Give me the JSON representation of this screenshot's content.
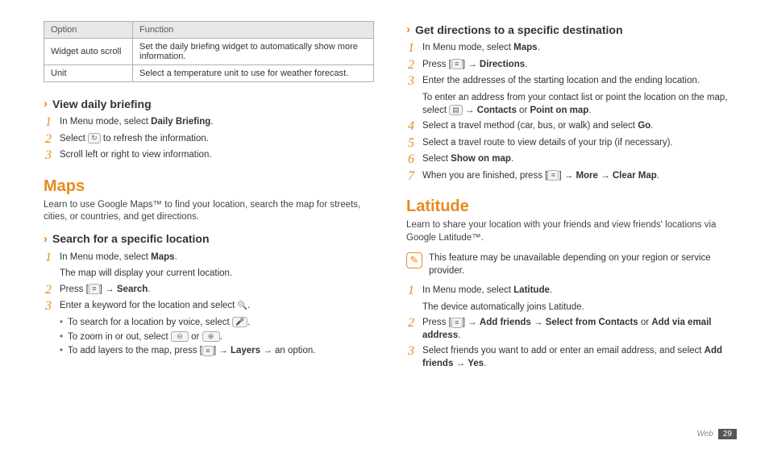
{
  "left": {
    "table": {
      "head": {
        "c1": "Option",
        "c2": "Function"
      },
      "rows": [
        {
          "c1": "Widget auto scroll",
          "c2": "Set the daily briefing widget to automatically show more information."
        },
        {
          "c1": "Unit",
          "c2": "Select a temperature unit to use for weather forecast."
        }
      ]
    },
    "sub1": {
      "title": "View daily briefing"
    },
    "sub1_steps": {
      "s1_pre": "In Menu mode, select ",
      "s1_b": "Daily Briefing",
      "s1_post": ".",
      "s2_pre": "Select ",
      "s2_post": " to refresh the information.",
      "s3": "Scroll left or right to view information."
    },
    "maps": {
      "title": "Maps",
      "intro": "Learn to use Google Maps™ to find your location, search the map for streets, cities, or countries, and get directions."
    },
    "sub2": {
      "title": "Search for a specific location"
    },
    "sub2_steps": {
      "s1_pre": "In Menu mode, select ",
      "s1_b": "Maps",
      "s1_post": ".",
      "s1_line2": "The map will display your current location.",
      "s2_pre": "Press [",
      "s2_mid": "] → ",
      "s2_b": "Search",
      "s2_post": ".",
      "s3_pre": "Enter a keyword for the location and select ",
      "s3_post": ".",
      "b1_pre": "To search for a location by voice, select ",
      "b1_post": ".",
      "b2_pre": "To zoom in or out, select ",
      "b2_mid": " or ",
      "b2_post": ".",
      "b3_pre": "To add layers to the map, press [",
      "b3_mid": "] → ",
      "b3_b": "Layers",
      "b3_post": " → an option."
    }
  },
  "right": {
    "sub1": {
      "title": "Get directions to a specific destination"
    },
    "sub1_steps": {
      "s1_pre": "In Menu mode, select ",
      "s1_b": "Maps",
      "s1_post": ".",
      "s2_pre": "Press [",
      "s2_mid": "] → ",
      "s2_b": "Directions",
      "s2_post": ".",
      "s3": "Enter the addresses of the starting location and the ending location.",
      "s3_line2_pre": "To enter an address from your contact list or point the location on the map, select ",
      "s3_line2_mid": " → ",
      "s3_line2_b1": "Contacts",
      "s3_line2_or": " or ",
      "s3_line2_b2": "Point on map",
      "s3_line2_post": ".",
      "s4_pre": "Select a travel method (car, bus, or walk) and select ",
      "s4_b": "Go",
      "s4_post": ".",
      "s5": "Select a travel route to view details of your trip (if necessary).",
      "s6_pre": "Select ",
      "s6_b": "Show on map",
      "s6_post": ".",
      "s7_pre": "When you are finished, press [",
      "s7_mid": "] → ",
      "s7_b1": "More",
      "s7_arr": " → ",
      "s7_b2": "Clear Map",
      "s7_post": "."
    },
    "latitude": {
      "title": "Latitude",
      "intro": "Learn to share your location with your friends and view friends' locations via Google Latitude™.",
      "note": "This feature may be unavailable depending on your region or service provider."
    },
    "lat_steps": {
      "s1_pre": "In Menu mode, select ",
      "s1_b": "Latitude",
      "s1_post": ".",
      "s1_line2": "The device automatically joins Latitude.",
      "s2_pre": "Press [",
      "s2_mid": "] → ",
      "s2_b1": "Add friends",
      "s2_arr1": " → ",
      "s2_b2": "Select from Contacts",
      "s2_or": " or ",
      "s2_b3": "Add via email address",
      "s2_post": ".",
      "s3_pre": "Select friends you want to add or enter an email address, and select ",
      "s3_b1": "Add friends",
      "s3_arr": " → ",
      "s3_b2": "Yes",
      "s3_post": "."
    }
  },
  "footer": {
    "section": "Web",
    "page": "29"
  },
  "nums": {
    "n1": "1",
    "n2": "2",
    "n3": "3",
    "n4": "4",
    "n5": "5",
    "n6": "6",
    "n7": "7"
  },
  "icons": {
    "menu": "≡",
    "refresh": "↻",
    "mag": "🔍",
    "mic": "🎤",
    "zoomout": "⊖",
    "zoomin": "⊕",
    "list": "▤",
    "note": "✎"
  }
}
